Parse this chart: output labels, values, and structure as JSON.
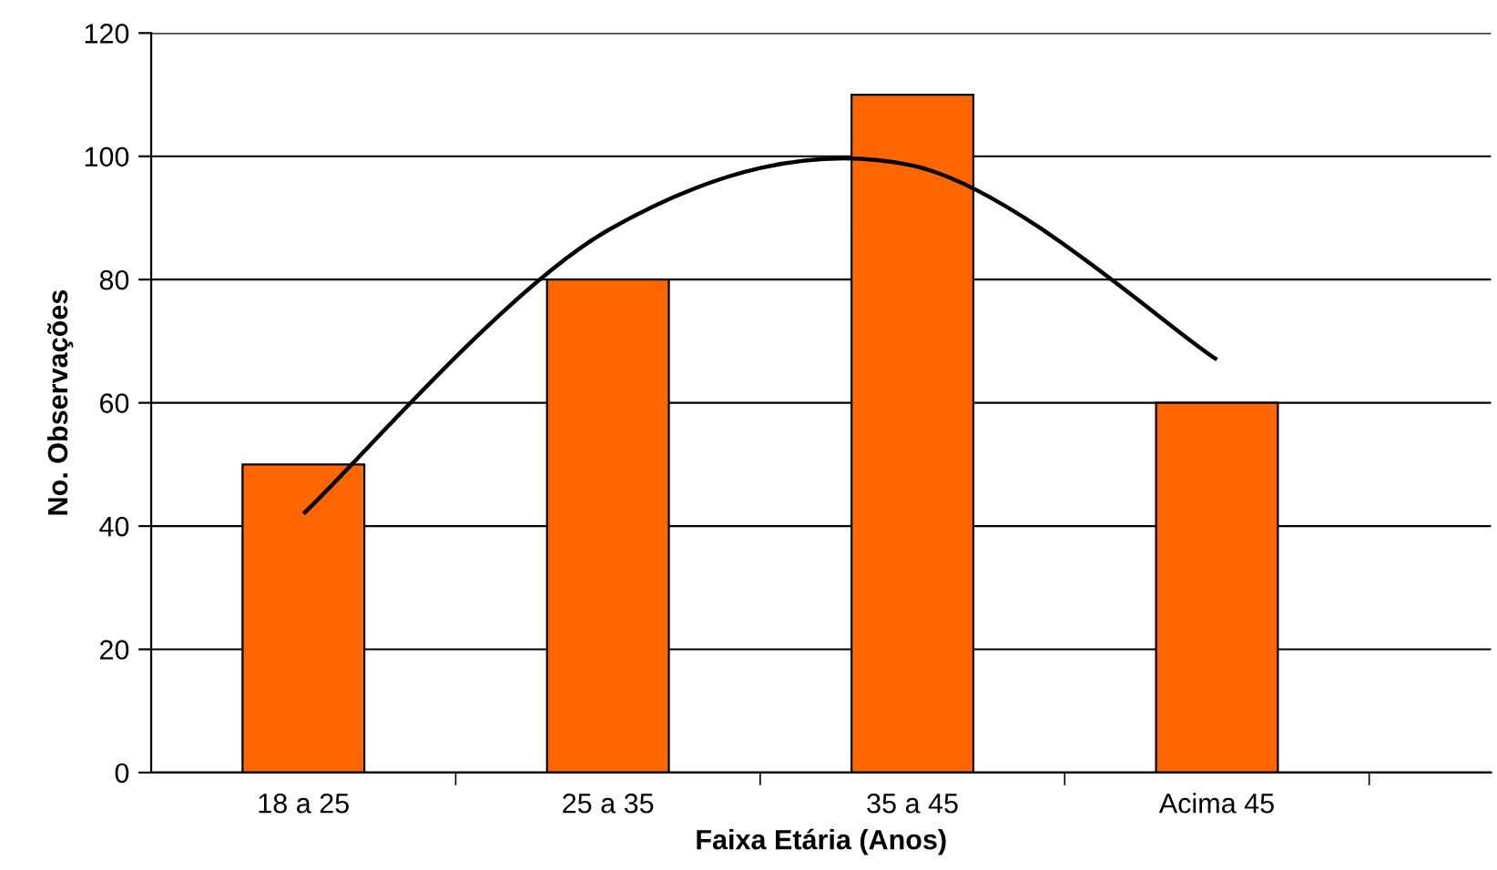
{
  "chart_data": {
    "type": "bar",
    "xlabel": "Faixa Etária (Anos)",
    "ylabel": "No. Observações",
    "categories": [
      "18 a 25",
      "25 a 35",
      "35 a 45",
      "Acima 45"
    ],
    "series": [
      {
        "color": "#ff6600",
        "values": [
          50,
          80,
          110,
          60
        ]
      },
      {
        "type": "line",
        "color": "#000000",
        "values": [
          42,
          88,
          98.5,
          67
        ]
      }
    ],
    "ylim": [
      0,
      120
    ],
    "yticks": [
      0,
      20,
      40,
      60,
      80,
      100,
      120
    ],
    "grid": "y",
    "legend": false
  }
}
